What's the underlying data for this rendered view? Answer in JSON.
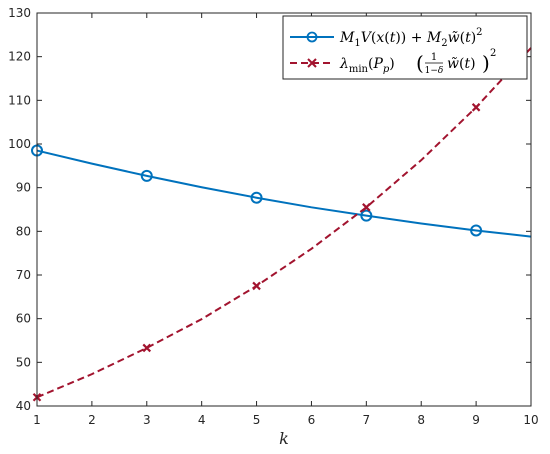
{
  "chart_data": {
    "type": "line",
    "xlabel": "k",
    "ylabel": "",
    "xlim": [
      1,
      10
    ],
    "ylim": [
      40,
      130
    ],
    "xticks": [
      1,
      2,
      3,
      4,
      5,
      6,
      7,
      8,
      9,
      10
    ],
    "yticks": [
      40,
      50,
      60,
      70,
      80,
      90,
      100,
      110,
      120,
      130
    ],
    "legend_position": "top-right",
    "grid": false,
    "series": [
      {
        "name": "M_1 V(x(t)) + M_2 w̃(t)^2",
        "color": "#0072BD",
        "line_style": "solid",
        "marker": "circle",
        "x": [
          1,
          2,
          3,
          4,
          5,
          6,
          7,
          8,
          9,
          10
        ],
        "values": [
          98.5,
          95.5,
          92.7,
          90.1,
          87.7,
          85.5,
          83.6,
          81.8,
          80.2,
          78.8
        ],
        "marker_x": [
          1,
          3,
          5,
          7,
          9
        ]
      },
      {
        "name": "λ_min(P_p) ( (1/(1−δ)) w̃(t) )^2",
        "color": "#A2142F",
        "line_style": "dashed",
        "marker": "x",
        "x": [
          1,
          2,
          3,
          4,
          5,
          6,
          7,
          8,
          9,
          10
        ],
        "values": [
          42.0,
          47.3,
          53.3,
          59.9,
          67.5,
          76.0,
          85.5,
          96.3,
          108.4,
          122.0
        ],
        "marker_x": [
          1,
          3,
          5,
          7,
          9
        ]
      }
    ]
  }
}
